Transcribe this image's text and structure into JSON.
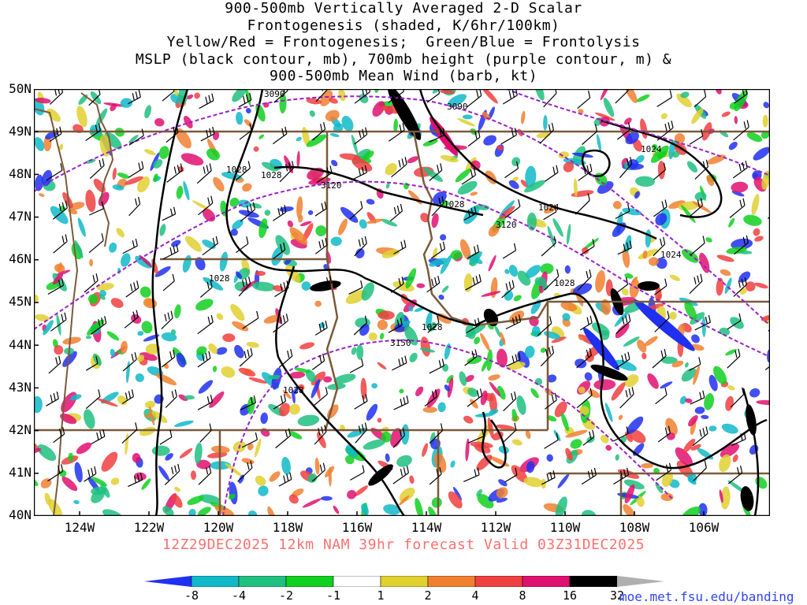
{
  "title_lines": [
    "900-500mb Vertically Averaged 2-D Scalar",
    "Frontogenesis (shaded, K/6hr/100km)",
    "Yellow/Red = Frontogenesis;  Green/Blue = Frontolysis",
    "MSLP (black contour, mb), 700mb height (purple contour, m) &",
    "900-500mb Mean Wind (barb, kt)"
  ],
  "lat_labels": [
    "50N",
    "49N",
    "48N",
    "47N",
    "46N",
    "45N",
    "44N",
    "43N",
    "42N",
    "41N",
    "40N"
  ],
  "lon_labels": [
    "124W",
    "122W",
    "120W",
    "118W",
    "116W",
    "114W",
    "112W",
    "110W",
    "108W",
    "106W"
  ],
  "valid_text": "12Z29DEC2025 12km NAM 39hr forecast Valid 03Z31DEC2025",
  "colorbar": {
    "labels": [
      "-8",
      "-4",
      "-2",
      "-1",
      "1",
      "2",
      "4",
      "8",
      "16",
      "32"
    ],
    "colors": [
      "#2030f0",
      "#10b8c8",
      "#20c080",
      "#10d020",
      "#ffffff",
      "#e0d030",
      "#f08030",
      "#f04040",
      "#e01070",
      "#000000"
    ],
    "end_low": "#2030f0",
    "end_high": "#b0b0b0"
  },
  "mslp_contour_labels": [
    "1028",
    "1028",
    "1028",
    "1028",
    "1028",
    "1028",
    "1028",
    "1024",
    "1024",
    "1024"
  ],
  "height_contour_labels": [
    "3090",
    "3090",
    "3120",
    "3120",
    "3150"
  ],
  "url": "moe.met.fsu.edu/banding"
}
